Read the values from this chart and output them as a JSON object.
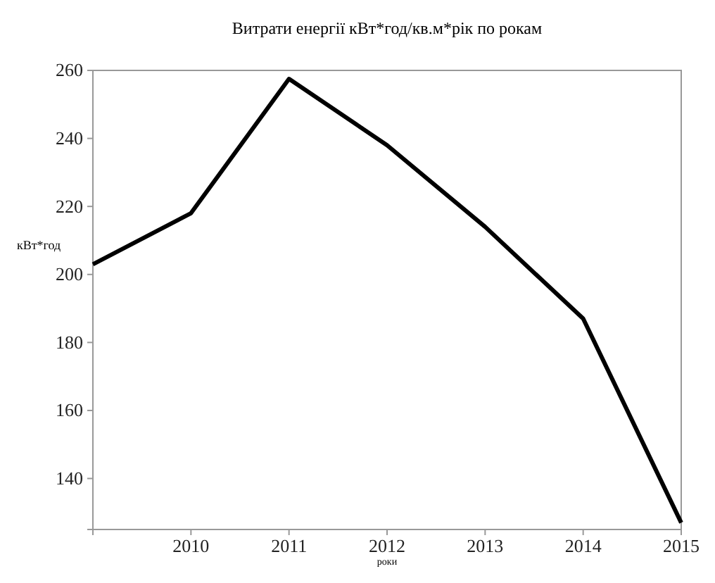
{
  "chart_data": {
    "type": "line",
    "title": "Витрати енергії  кВт*год/кв.м*рік по рокам",
    "xlabel": "роки",
    "ylabel": "кВт*год",
    "x": [
      2009,
      2010,
      2011,
      2012,
      2013,
      2014,
      2015
    ],
    "series": [
      {
        "color": "#000000",
        "values": [
          203,
          218,
          257.5,
          238,
          214,
          187,
          127
        ]
      }
    ],
    "xlim": [
      2009,
      2015
    ],
    "xticks": [
      2010,
      2011,
      2012,
      2013,
      2014,
      2015
    ],
    "ylim": [
      125,
      260
    ],
    "yticks": [
      140,
      160,
      180,
      200,
      220,
      240,
      260
    ],
    "grid": false,
    "marker": "none",
    "line_style": "solid"
  }
}
